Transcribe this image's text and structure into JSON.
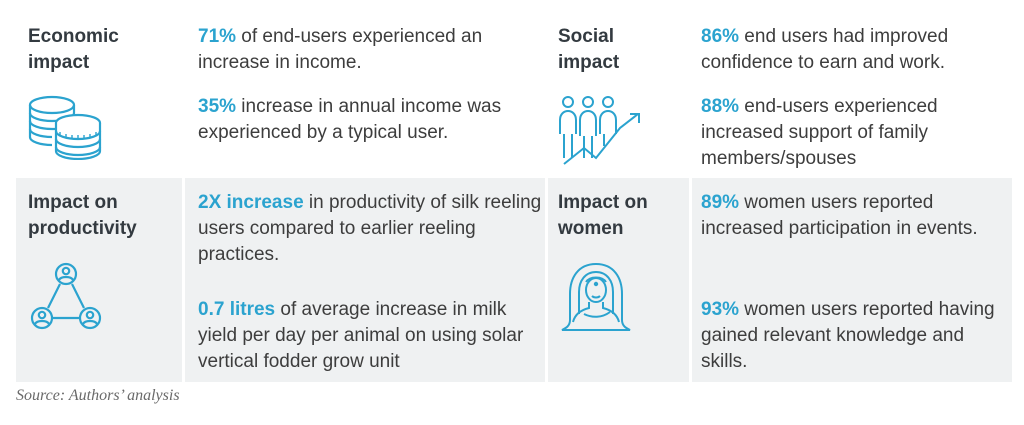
{
  "sections": [
    {
      "heading": "Economic\nimpact",
      "icon": "coins-icon",
      "stats": [
        {
          "highlight": "71%",
          "text": " of end-users experienced an increase in income."
        },
        {
          "highlight": "35%",
          "text": " increase in annual income was experienced by a typical user."
        }
      ]
    },
    {
      "heading": "Social\nimpact",
      "icon": "people-growth-icon",
      "stats": [
        {
          "highlight": "86%",
          "text": " end users had improved confidence to earn and work."
        },
        {
          "highlight": "88%",
          "text": " end-users experienced increased support of family members/spouses"
        }
      ]
    },
    {
      "heading": "Impact on\nproductivity",
      "icon": "network-users-icon",
      "stats": [
        {
          "highlight": "2X increase",
          "text": " in productivity of silk reeling users compared to earlier reeling practices."
        },
        {
          "highlight": "0.7 litres",
          "text": " of average increase in milk yield per day per animal on using solar vertical fodder grow unit"
        }
      ]
    },
    {
      "heading": "Impact on\nwomen",
      "icon": "woman-icon",
      "stats": [
        {
          "highlight": "89%",
          "text": " women users reported increased participation in events."
        },
        {
          "highlight": "93%",
          "text": " women users reported having gained relevant knowledge and skills."
        }
      ]
    }
  ],
  "source": "Source: Authors’ analysis",
  "colors": {
    "accent": "#2ba3cf",
    "band": "#eff1f2",
    "heading": "#333a40"
  }
}
